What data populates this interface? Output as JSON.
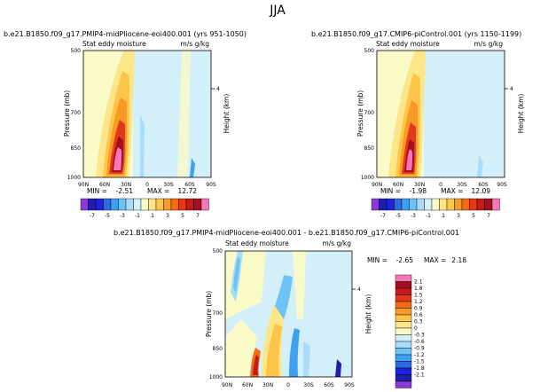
{
  "figure": {
    "season": "JJA"
  },
  "colors": {
    "palette": [
      "#8c3cd6",
      "#1f1fa8",
      "#2020e0",
      "#2d6be6",
      "#3fa0f0",
      "#6fc4f7",
      "#a8dcf9",
      "#d2effa",
      "#fafac8",
      "#fde68a",
      "#fdc64a",
      "#f99a26",
      "#f26c13",
      "#e23a18",
      "#c41a1a",
      "#a40e1e",
      "#f477b8"
    ],
    "frame": "#000000"
  },
  "chart_data": [
    {
      "type": "heatmap",
      "title": "b.e21.B1850.f09_g17.PMIP4-midPliocene-eoi400.001 (yrs 951-1050)",
      "subtitle_left": "Stat eddy moisture",
      "subtitle_right": "m/s g/kg",
      "ylabel": "Pressure (mb)",
      "y2label": "Height (km)",
      "x_ticks": [
        "90N",
        "60N",
        "30N",
        "0",
        "30S",
        "60S",
        "90S"
      ],
      "y_ticks": [
        "500",
        "700",
        "850",
        "1000"
      ],
      "y2_ticks": [
        "4"
      ],
      "min_label": "MIN =",
      "min_value": "-2.51",
      "max_label": "MAX =",
      "max_value": "12.72",
      "colorbar_levels": [
        "-7",
        "-5",
        "-3",
        "-1",
        "1",
        "3",
        "5",
        "7"
      ]
    },
    {
      "type": "heatmap",
      "title": "b.e21.B1850.f09_g17.CMIP6-piControl.001 (yrs 1150-1199)",
      "subtitle_left": "Stat eddy moisture",
      "subtitle_right": "m/s g/kg",
      "ylabel": "Pressure (mb)",
      "y2label": "Height (km)",
      "x_ticks": [
        "90N",
        "60N",
        "30N",
        "0",
        "30S",
        "60S",
        "90S"
      ],
      "y_ticks": [
        "500",
        "700",
        "850",
        "1000"
      ],
      "y2_ticks": [
        "4"
      ],
      "min_label": "MIN =",
      "min_value": "-1.98",
      "max_label": "MAX =",
      "max_value": "12.09",
      "colorbar_levels": [
        "-7",
        "-5",
        "-3",
        "-1",
        "1",
        "3",
        "5",
        "7"
      ]
    },
    {
      "type": "heatmap",
      "title": "b.e21.B1850.f09_g17.PMIP4-midPliocene-eoi400.001 - b.e21.B1850.f09_g17.CMIP6-piControl.001",
      "subtitle_left": "Stat eddy moisture",
      "subtitle_right": "m/s g/kg",
      "ylabel": "Pressure (mb)",
      "y2label": "Height (km)",
      "x_ticks": [
        "90N",
        "60N",
        "30N",
        "0",
        "30S",
        "60S",
        "90S"
      ],
      "y_ticks": [
        "500",
        "700",
        "850",
        "1000"
      ],
      "y2_ticks": [
        "4"
      ],
      "min_label": "MIN =",
      "min_value": "-2.65",
      "max_label": "MAX =",
      "max_value": "2.18",
      "colorbar_levels": [
        "2.1",
        "1.8",
        "1.5",
        "1.2",
        "0.9",
        "0.6",
        "0.3",
        "0",
        "-0.3",
        "-0.6",
        "-0.9",
        "-1.2",
        "-1.5",
        "-1.8",
        "-2.1"
      ]
    }
  ]
}
